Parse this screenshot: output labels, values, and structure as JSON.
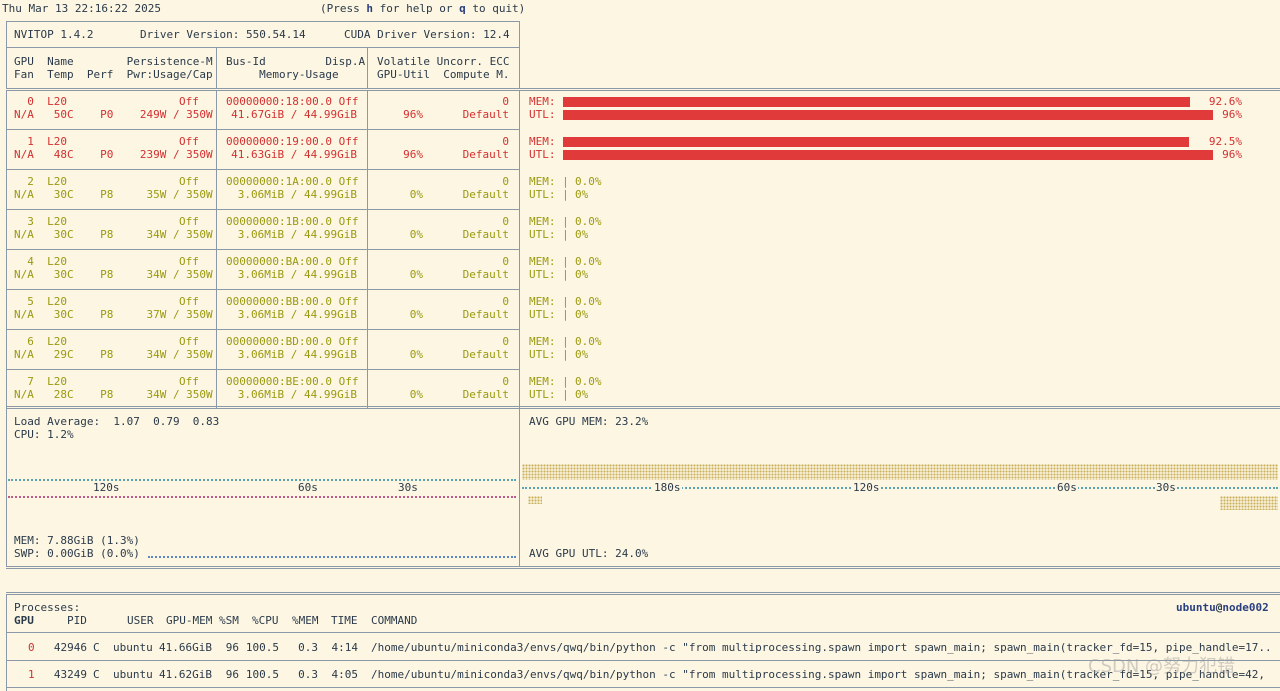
{
  "topbar": {
    "datetime": "Thu Mar 13 22:16:22 2025",
    "help_prefix": "(Press ",
    "help_key_h": "h",
    "help_mid": " for help or ",
    "help_key_q": "q",
    "help_suffix": " to quit)"
  },
  "header": {
    "version": "NVITOP 1.4.2",
    "driver": "Driver Version: 550.54.14",
    "cuda": "CUDA Driver Version: 12.4",
    "col1_line1": "GPU  Name        Persistence-M",
    "col1_line2": "Fan  Temp  Perf  Pwr:Usage/Cap",
    "col2_line1": "Bus-Id         Disp.A",
    "col2_line2": "     Memory-Usage",
    "col3_line1": "Volatile Uncorr. ECC",
    "col3_line2": "GPU-Util  Compute M."
  },
  "gpus": [
    {
      "l1a": "  0  L20",
      "l1b": "Off",
      "l2": "N/A   50C    P0    249W / 350W",
      "bus": "00000000:18:00.0 Off",
      "mem": "41.67GiB / 44.99GiB",
      "ecc": "0",
      "util": "96%",
      "compute": "Default",
      "mem_label": "MEM:",
      "mem_pct": "92.6%",
      "mem_frac": 0.926,
      "utl_label": "UTL:",
      "utl_pct": "96%",
      "utl_frac": 0.96,
      "color": "red"
    },
    {
      "l1a": "  1  L20",
      "l1b": "Off",
      "l2": "N/A   48C    P0    239W / 350W",
      "bus": "00000000:19:00.0 Off",
      "mem": "41.63GiB / 44.99GiB",
      "ecc": "0",
      "util": "96%",
      "compute": "Default",
      "mem_label": "MEM:",
      "mem_pct": "92.5%",
      "mem_frac": 0.925,
      "utl_label": "UTL:",
      "utl_pct": "96%",
      "utl_frac": 0.96,
      "color": "red"
    },
    {
      "l1a": "  2  L20",
      "l1b": "Off",
      "l2": "N/A   30C    P8     35W / 350W",
      "bus": "00000000:1A:00.0 Off",
      "mem": "3.06MiB / 44.99GiB",
      "ecc": "0",
      "util": "0%",
      "compute": "Default",
      "mem_label": "MEM: |",
      "mem_pct": "0.0%",
      "mem_frac": 0,
      "utl_label": "UTL: |",
      "utl_pct": "0%",
      "utl_frac": 0,
      "color": "olive"
    },
    {
      "l1a": "  3  L20",
      "l1b": "Off",
      "l2": "N/A   30C    P8     34W / 350W",
      "bus": "00000000:1B:00.0 Off",
      "mem": "3.06MiB / 44.99GiB",
      "ecc": "0",
      "util": "0%",
      "compute": "Default",
      "mem_label": "MEM: |",
      "mem_pct": "0.0%",
      "mem_frac": 0,
      "utl_label": "UTL: |",
      "utl_pct": "0%",
      "utl_frac": 0,
      "color": "olive"
    },
    {
      "l1a": "  4  L20",
      "l1b": "Off",
      "l2": "N/A   30C    P8     34W / 350W",
      "bus": "00000000:BA:00.0 Off",
      "mem": "3.06MiB / 44.99GiB",
      "ecc": "0",
      "util": "0%",
      "compute": "Default",
      "mem_label": "MEM: |",
      "mem_pct": "0.0%",
      "mem_frac": 0,
      "utl_label": "UTL: |",
      "utl_pct": "0%",
      "utl_frac": 0,
      "color": "olive"
    },
    {
      "l1a": "  5  L20",
      "l1b": "Off",
      "l2": "N/A   30C    P8     37W / 350W",
      "bus": "00000000:BB:00.0 Off",
      "mem": "3.06MiB / 44.99GiB",
      "ecc": "0",
      "util": "0%",
      "compute": "Default",
      "mem_label": "MEM: |",
      "mem_pct": "0.0%",
      "mem_frac": 0,
      "utl_label": "UTL: |",
      "utl_pct": "0%",
      "utl_frac": 0,
      "color": "olive"
    },
    {
      "l1a": "  6  L20",
      "l1b": "Off",
      "l2": "N/A   29C    P8     34W / 350W",
      "bus": "00000000:BD:00.0 Off",
      "mem": "3.06MiB / 44.99GiB",
      "ecc": "0",
      "util": "0%",
      "compute": "Default",
      "mem_label": "MEM: |",
      "mem_pct": "0.0%",
      "mem_frac": 0,
      "utl_label": "UTL: |",
      "utl_pct": "0%",
      "utl_frac": 0,
      "color": "olive"
    },
    {
      "l1a": "  7  L20",
      "l1b": "Off",
      "l2": "N/A   28C    P8     34W / 350W",
      "bus": "00000000:BE:00.0 Off",
      "mem": "3.06MiB / 44.99GiB",
      "ecc": "0",
      "util": "0%",
      "compute": "Default",
      "mem_label": "MEM: |",
      "mem_pct": "0.0%",
      "mem_frac": 0,
      "utl_label": "UTL: |",
      "utl_pct": "0%",
      "utl_frac": 0,
      "color": "olive"
    }
  ],
  "host": {
    "load_average": "Load Average:  1.07  0.79  0.83",
    "cpu": "CPU: 1.2%",
    "mem": "MEM: 7.88GiB (1.3%)",
    "swp": "SWP: 0.00GiB (0.0%)",
    "ticks_left": [
      "120s",
      "60s",
      "30s"
    ],
    "avg_gpu_mem": "AVG GPU MEM: 23.2%",
    "avg_gpu_utl": "AVG GPU UTL: 24.0%",
    "ticks_right": [
      "180s",
      "120s",
      "60s",
      "30s"
    ]
  },
  "processes": {
    "title": "Processes:",
    "user_host_user": "ubuntu",
    "user_host_at": "@",
    "user_host_host": "node002",
    "headers": {
      "gpu": "GPU",
      "pid": "PID",
      "user": "USER",
      "gpumem": "GPU-MEM",
      "sm": "%SM",
      "cpu": "%CPU",
      "mem": "%MEM",
      "time": "TIME",
      "command": "COMMAND"
    },
    "rows": [
      {
        "gpu": "0",
        "pid": "42946",
        "type": "C",
        "user": "ubuntu",
        "gpumem": "41.66GiB",
        "sm": "96",
        "cpu": "100.5",
        "mem": "0.3",
        "time": "4:14",
        "command": "/home/ubuntu/miniconda3/envs/qwq/bin/python -c \"from multiprocessing.spawn import spawn_main; spawn_main(tracker_fd=15, pipe_handle=17.."
      },
      {
        "gpu": "1",
        "pid": "43249",
        "type": "C",
        "user": "ubuntu",
        "gpumem": "41.62GiB",
        "sm": "96",
        "cpu": "100.5",
        "mem": "0.3",
        "time": "4:05",
        "command": "/home/ubuntu/miniconda3/envs/qwq/bin/python -c \"from multiprocessing.spawn import spawn_main; spawn_main(tracker_fd=15, pipe_handle=42,"
      }
    ]
  },
  "watermark": "CSDN @努力犯错",
  "colors": {
    "bar_red": "#e03a3a",
    "active_text": "#d33030",
    "idle_text": "#9a9a10",
    "background": "#fdf6e3"
  }
}
